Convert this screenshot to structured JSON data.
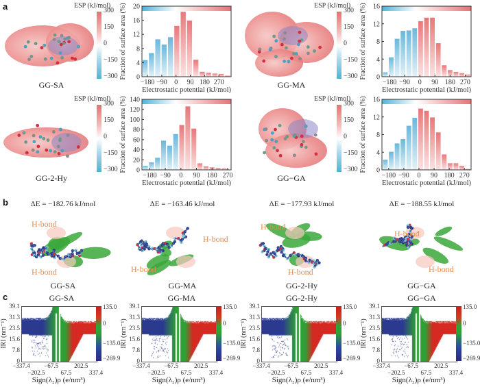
{
  "panels": {
    "a": {
      "label": "a",
      "esp_colorbar": {
        "title": "ESP (kJ/mol)",
        "ticks": [
          "300",
          "150",
          "0",
          "−150",
          "−300"
        ],
        "colors": {
          "positive": "#e67274",
          "zero": "#ffffff",
          "negative": "#4eb3d8"
        }
      },
      "molecules": [
        "GG-SA",
        "GG-MA",
        "GG-2-Hy",
        "GG−GA"
      ]
    },
    "b": {
      "label": "b",
      "items": [
        {
          "name": "GG-SA",
          "energy": "ΔE = −182.76 kJ/mol",
          "hbonds": [
            "H-bond",
            "H-bond"
          ]
        },
        {
          "name": "GG-MA",
          "energy": "ΔE = −163.46 kJ/mol",
          "hbonds": [
            "H-bond",
            "H-bond"
          ]
        },
        {
          "name": "GG-2-Hy",
          "energy": "ΔE = −177.93 kJ/mol",
          "hbonds": [
            "H-bond",
            "H-bond"
          ]
        },
        {
          "name": "GG−GA",
          "energy": "ΔE = −188.55 kJ/mol",
          "hbonds": [
            "H-bond",
            "H-bond"
          ]
        }
      ]
    },
    "c": {
      "label": "c",
      "titles": [
        "GG-SA",
        "GG-MA",
        "GG-2-Hy",
        "GG−GA"
      ],
      "ylabel": "IRI (nm⁻¹)",
      "xlabel": "Sign(λ₂)ρ (e/nm³)",
      "yticks": [
        "39.1",
        "31.3",
        "23.5",
        "15.6",
        "7.8",
        "0"
      ],
      "xticks": [
        "−337.4",
        "−202.5",
        "−67.5",
        "67.5",
        "202.5",
        "337.4"
      ],
      "colorbar_ticks": [
        "135.0",
        "0",
        "−135.0",
        "−269.9"
      ],
      "colors": {
        "attraction": "#2b3a8f",
        "vdw": "#2fa035",
        "repulsion": "#d42a22"
      }
    }
  },
  "chart_data": [
    {
      "type": "bar",
      "molecule": "GG-SA",
      "x": [
        -195,
        -155,
        -115,
        -75,
        -35,
        5,
        45,
        85,
        125,
        165,
        205,
        245,
        285,
        325
      ],
      "values": [
        4.7,
        6.7,
        10.6,
        9.1,
        11.2,
        14.4,
        18.4,
        15.9,
        4.8,
        1.4,
        1.1,
        0.9,
        0.8,
        0.3
      ],
      "xlabel": "Electrostatic potential (kJ/mol)",
      "ylabel": "Fraction of surface area (%)",
      "xticks": [
        -180,
        -90,
        0,
        90,
        180,
        270
      ],
      "yticks": [
        0,
        4,
        8,
        12,
        16,
        20
      ],
      "xlim": [
        -215,
        347
      ],
      "ylim": [
        0,
        20
      ]
    },
    {
      "type": "bar",
      "molecule": "GG-MA",
      "x": [
        -205,
        -170,
        -135,
        -100,
        -65,
        -30,
        5,
        40,
        75,
        110,
        145,
        180,
        215,
        250,
        285
      ],
      "values": [
        1.0,
        4.4,
        8.6,
        10.4,
        10.5,
        11.0,
        12.6,
        13.4,
        13.4,
        7.6,
        2.6,
        1.5,
        1.1,
        0.8,
        0.5
      ],
      "xlabel": "Electrostatic potential (kJ/mol)",
      "ylabel": "Fraction of surface area (%)",
      "xticks": [
        -180,
        -90,
        0,
        90,
        180,
        270
      ],
      "yticks": [
        0,
        4,
        8,
        12,
        16
      ],
      "xlim": [
        -225,
        305
      ],
      "ylim": [
        0,
        16
      ]
    },
    {
      "type": "bar",
      "molecule": "GG-2-Hy",
      "x": [
        -205,
        -170,
        -135,
        -100,
        -65,
        -30,
        5,
        40,
        75,
        110,
        145,
        180,
        215,
        250
      ],
      "values": [
        8,
        15,
        24,
        58,
        48,
        71,
        89,
        126,
        82,
        13,
        7,
        5,
        4,
        3
      ],
      "xlabel": "Electrostatic potential (kJ/mol)",
      "ylabel": "Fraction of surface area (%)",
      "xticks": [
        -180,
        -90,
        0,
        90,
        180,
        270
      ],
      "yticks": [
        0,
        20,
        40,
        60,
        80,
        100,
        120,
        140
      ],
      "xlim": [
        -225,
        290
      ],
      "ylim": [
        0,
        140
      ]
    },
    {
      "type": "bar",
      "molecule": "GG−GA",
      "x": [
        -200,
        -165,
        -130,
        -95,
        -60,
        -25,
        10,
        45,
        80,
        115,
        150,
        185,
        220,
        255,
        290
      ],
      "values": [
        2.3,
        4.1,
        6.0,
        7.0,
        10.0,
        11.8,
        13.9,
        13.4,
        11.9,
        8.5,
        3.5,
        1.5,
        1.5,
        0.9,
        0.2
      ],
      "xlabel": "Electrostatic potential (kJ/mol)",
      "ylabel": "Fraction of surface area (%)",
      "xticks": [
        -180,
        -90,
        0,
        90,
        180,
        270
      ],
      "yticks": [
        0,
        4,
        8,
        12,
        16
      ],
      "xlim": [
        -220,
        310
      ],
      "ylim": [
        0,
        16
      ]
    }
  ]
}
